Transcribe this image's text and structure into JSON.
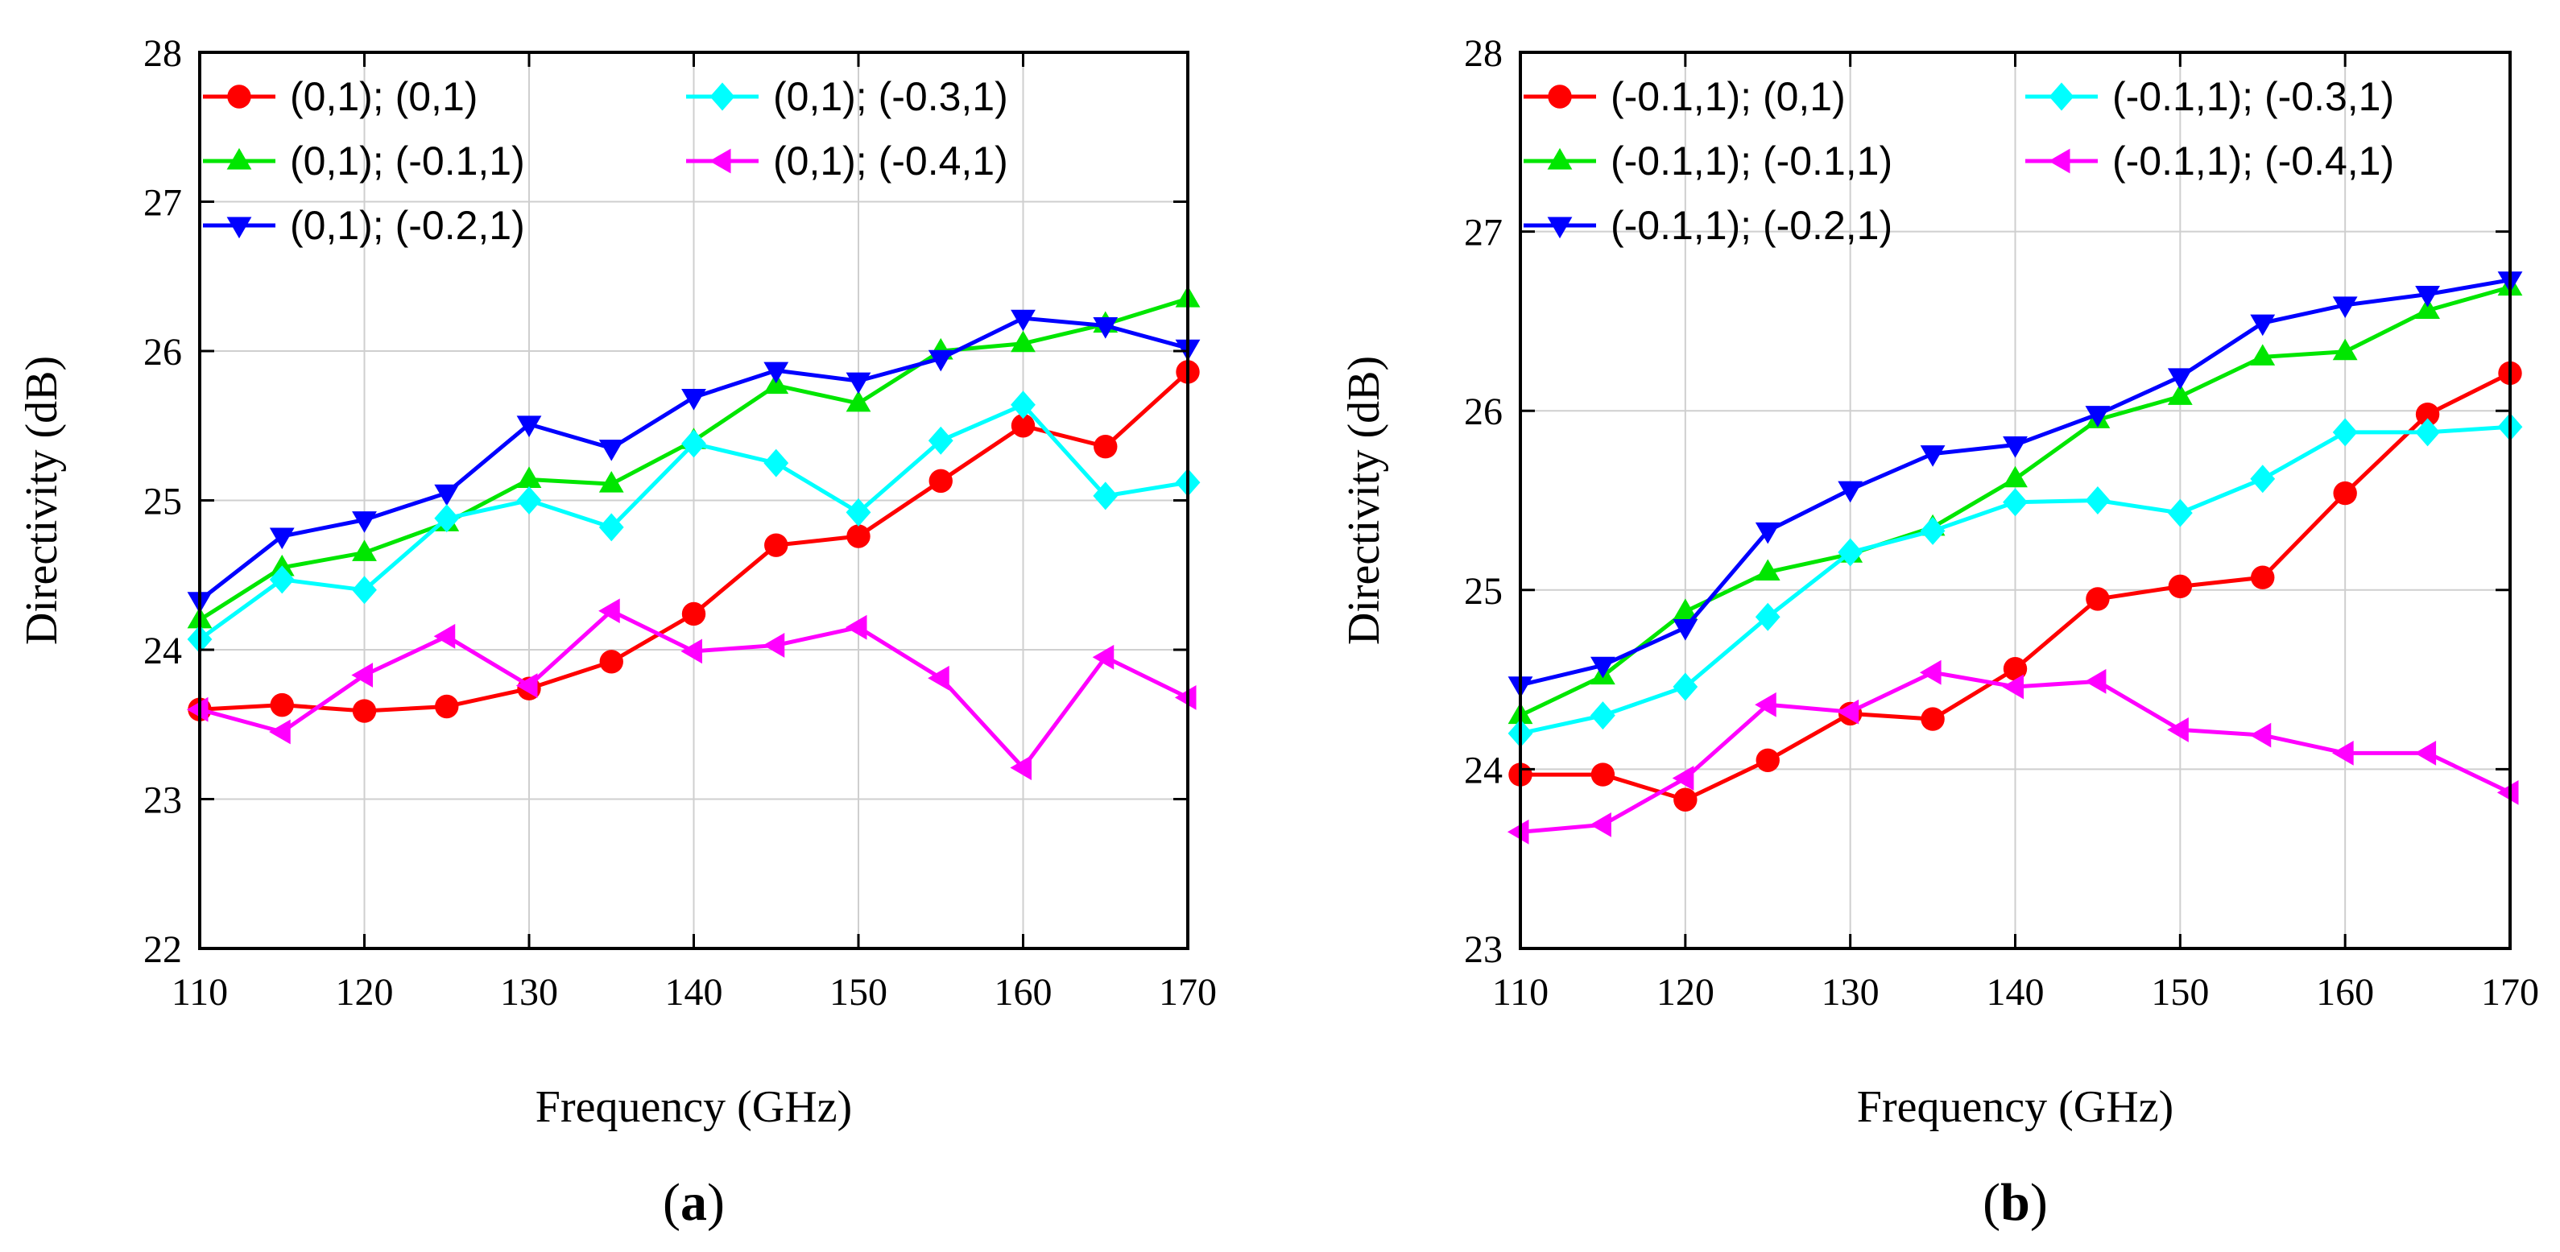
{
  "chart_data": [
    {
      "type": "line",
      "panel_label": "a",
      "xlabel": "Frequency (GHz)",
      "ylabel": "Directivity (dB)",
      "xlim": [
        110,
        170
      ],
      "ylim": [
        22,
        28
      ],
      "x_ticks": [
        110,
        120,
        130,
        140,
        150,
        160,
        170
      ],
      "y_ticks": [
        22,
        23,
        24,
        25,
        26,
        27,
        28
      ],
      "grid": true,
      "legend_position": "top-left",
      "x": [
        110,
        115,
        120,
        125,
        130,
        135,
        140,
        145,
        150,
        155,
        160,
        165,
        170
      ],
      "series": [
        {
          "name": "(0,1); (0,1)",
          "color": "#ff0000",
          "marker": "circle",
          "values": [
            23.6,
            23.63,
            23.59,
            23.62,
            23.74,
            23.92,
            24.24,
            24.7,
            24.76,
            25.13,
            25.5,
            25.36,
            25.86
          ]
        },
        {
          "name": "(0,1); (-0.1,1)",
          "color": "#00e600",
          "marker": "triangle-up",
          "values": [
            24.2,
            24.55,
            24.65,
            24.85,
            25.14,
            25.11,
            25.4,
            25.77,
            25.65,
            26.0,
            26.05,
            26.18,
            26.35
          ]
        },
        {
          "name": "(0,1); (-0.2,1)",
          "color": "#0000ff",
          "marker": "triangle-down",
          "values": [
            24.33,
            24.76,
            24.87,
            25.05,
            25.51,
            25.35,
            25.69,
            25.87,
            25.8,
            25.95,
            26.22,
            26.17,
            26.02
          ]
        },
        {
          "name": "(0,1); (-0.3,1)",
          "color": "#00ffff",
          "marker": "diamond",
          "values": [
            24.07,
            24.47,
            24.4,
            24.88,
            25.0,
            24.82,
            25.38,
            25.25,
            24.92,
            25.4,
            25.64,
            25.03,
            25.12
          ]
        },
        {
          "name": "(0,1); (-0.4,1)",
          "color": "#ff00ff",
          "marker": "triangle-left",
          "values": [
            23.6,
            23.45,
            23.83,
            24.09,
            23.76,
            24.26,
            23.99,
            24.03,
            24.15,
            23.81,
            23.21,
            23.95,
            23.68
          ]
        }
      ]
    },
    {
      "type": "line",
      "panel_label": "b",
      "xlabel": "Frequency (GHz)",
      "ylabel": "Directivity (dB)",
      "xlim": [
        110,
        170
      ],
      "ylim": [
        23,
        28
      ],
      "x_ticks": [
        110,
        120,
        130,
        140,
        150,
        160,
        170
      ],
      "y_ticks": [
        23,
        24,
        25,
        26,
        27,
        28
      ],
      "grid": true,
      "legend_position": "top-left",
      "x": [
        110,
        115,
        120,
        125,
        130,
        135,
        140,
        145,
        150,
        155,
        160,
        165,
        170
      ],
      "series": [
        {
          "name": "(-0.1,1); (0,1)",
          "color": "#ff0000",
          "marker": "circle",
          "values": [
            23.97,
            23.97,
            23.83,
            24.05,
            24.31,
            24.28,
            24.56,
            24.95,
            25.02,
            25.07,
            25.54,
            25.98,
            26.21
          ]
        },
        {
          "name": "(-0.1,1); (-0.1,1)",
          "color": "#00e600",
          "marker": "triangle-up",
          "values": [
            24.3,
            24.52,
            24.88,
            25.1,
            25.2,
            25.35,
            25.62,
            25.95,
            26.08,
            26.3,
            26.33,
            26.56,
            26.69
          ]
        },
        {
          "name": "(-0.1,1); (-0.2,1)",
          "color": "#0000ff",
          "marker": "triangle-down",
          "values": [
            24.47,
            24.58,
            24.79,
            25.33,
            25.56,
            25.76,
            25.81,
            25.98,
            26.19,
            26.49,
            26.59,
            26.65,
            26.73
          ]
        },
        {
          "name": "(-0.1,1); (-0.3,1)",
          "color": "#00ffff",
          "marker": "diamond",
          "values": [
            24.2,
            24.3,
            24.46,
            24.85,
            25.21,
            25.33,
            25.49,
            25.5,
            25.43,
            25.62,
            25.88,
            25.88,
            25.91
          ]
        },
        {
          "name": "(-0.1,1); (-0.4,1)",
          "color": "#ff00ff",
          "marker": "triangle-left",
          "values": [
            23.65,
            23.69,
            23.95,
            24.36,
            24.32,
            24.54,
            24.46,
            24.49,
            24.22,
            24.19,
            24.09,
            24.09,
            23.87
          ]
        }
      ]
    }
  ]
}
